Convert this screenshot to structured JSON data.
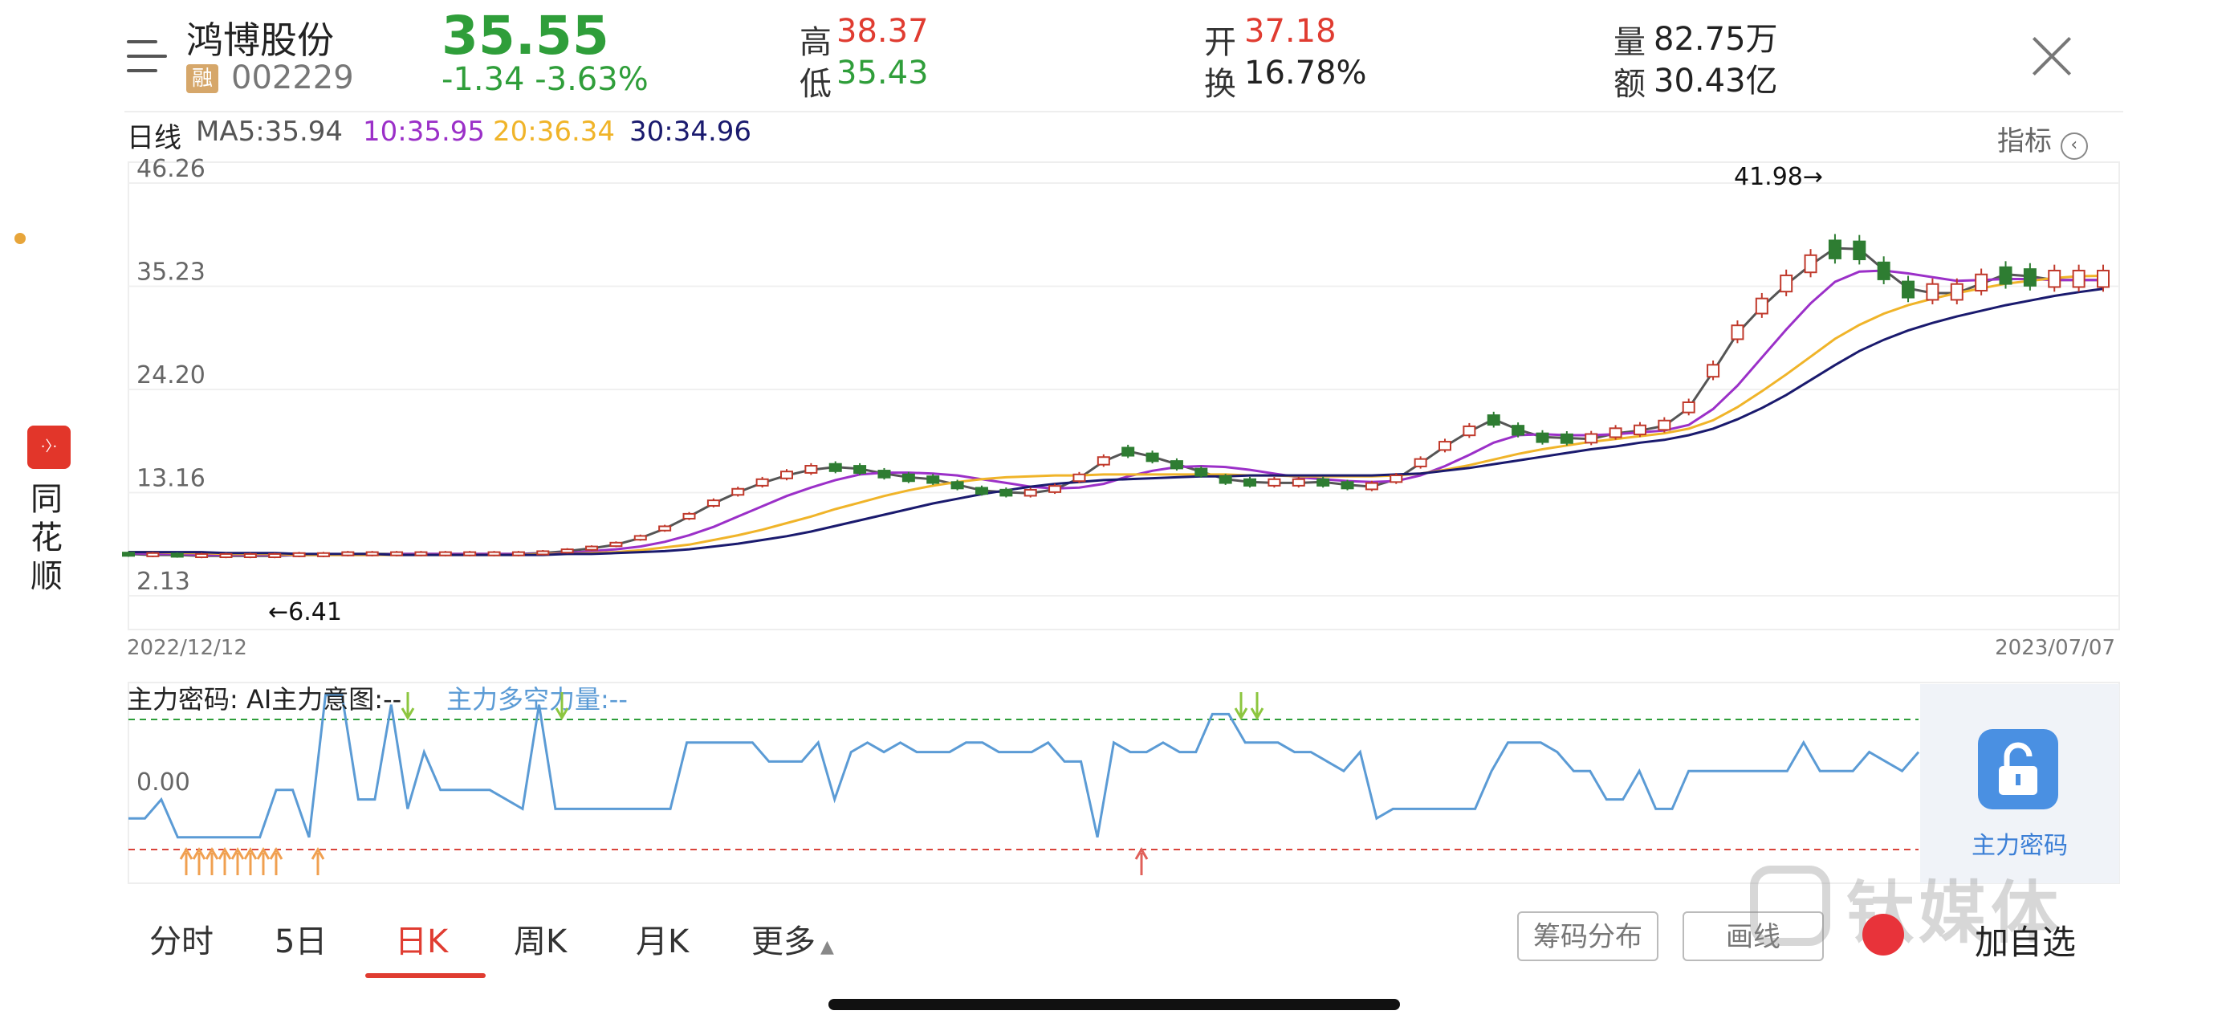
{
  "header": {
    "stock_name": "鸿博股份",
    "rong_badge": "融",
    "stock_code": "002229",
    "price": "35.55",
    "change": "-1.34  -3.63%",
    "high_label": "高",
    "high_value": "38.37",
    "low_label": "低",
    "low_value": "35.43",
    "open_label": "开",
    "open_value": "37.18",
    "turnover_label": "换",
    "turnover_value": "16.78%",
    "volume_label": "量",
    "volume_value": "82.75万",
    "amount_label": "额",
    "amount_value": "30.43亿"
  },
  "left_brand": {
    "logo_text": "·〉·",
    "name": "同花顺"
  },
  "ma_legend": {
    "period": "日线",
    "ma5": "MA5:35.94",
    "ma10": "10:35.95",
    "ma20": "20:36.34",
    "ma30": "30:34.96",
    "indicator_button": "指标"
  },
  "colors": {
    "up": "#c0392b",
    "down": "#2e7d32",
    "ma5": "#555555",
    "ma10": "#9b30c8",
    "ma20": "#f0b429",
    "ma30": "#1a1a6e",
    "indicator_line": "#5b9bd5",
    "upper_dash": "#2e9e3a",
    "lower_dash": "#d9443b"
  },
  "chart_data": [
    {
      "type": "candlestick",
      "y_ticks": [
        "46.26",
        "35.23",
        "24.20",
        "13.16",
        "2.13"
      ],
      "ylim": [
        2.13,
        46.26
      ],
      "x_start_label": "2022/12/12",
      "x_end_label": "2023/07/07",
      "annotations": [
        {
          "text": "41.98→",
          "value": 41.98
        },
        {
          "text": "←6.41",
          "value": 6.41
        }
      ],
      "series": [
        {
          "name": "MA5",
          "values": [
            6.6,
            6.5,
            6.5,
            6.4,
            6.4,
            6.4,
            6.4,
            6.5,
            6.5,
            6.6,
            6.6,
            6.6,
            6.6,
            6.6,
            6.6,
            6.6,
            6.6,
            6.7,
            6.9,
            7.2,
            7.6,
            8.3,
            9.3,
            10.6,
            12.0,
            13.2,
            14.2,
            15.0,
            15.6,
            15.9,
            15.7,
            15.2,
            14.8,
            14.6,
            14.0,
            13.4,
            13.2,
            13.1,
            13.5,
            14.7,
            16.5,
            17.6,
            17.0,
            16.2,
            15.4,
            14.6,
            14.3,
            14.2,
            14.2,
            14.3,
            14.0,
            13.8,
            14.6,
            16.3,
            18.1,
            19.7,
            21.0,
            19.9,
            19.1,
            19.0,
            18.9,
            19.5,
            19.8,
            20.3,
            22.2,
            26.1,
            30.2,
            33.0,
            35.4,
            37.5,
            39.3,
            39.2,
            37.0,
            35.0,
            34.5,
            34.5,
            35.5,
            36.5,
            36.3,
            35.9,
            35.9,
            35.9
          ]
        },
        {
          "name": "MA10",
          "values": [
            6.7,
            6.6,
            6.6,
            6.5,
            6.5,
            6.5,
            6.5,
            6.5,
            6.5,
            6.5,
            6.5,
            6.6,
            6.6,
            6.6,
            6.6,
            6.6,
            6.6,
            6.6,
            6.7,
            6.9,
            7.1,
            7.4,
            7.9,
            8.6,
            9.5,
            10.6,
            11.7,
            12.8,
            13.7,
            14.5,
            15.1,
            15.3,
            15.3,
            15.2,
            15.0,
            14.6,
            14.2,
            13.8,
            13.6,
            13.7,
            14.1,
            14.9,
            15.5,
            15.9,
            16.0,
            15.9,
            15.6,
            15.2,
            14.8,
            14.6,
            14.4,
            14.3,
            14.4,
            15.0,
            16.0,
            17.2,
            18.5,
            19.3,
            19.4,
            19.3,
            19.3,
            19.4,
            19.6,
            19.8,
            20.4,
            22.1,
            24.6,
            27.6,
            30.6,
            33.4,
            35.7,
            36.8,
            36.9,
            36.6,
            36.2,
            35.8,
            35.9,
            36.0,
            36.0,
            35.9,
            35.9,
            35.9
          ]
        },
        {
          "name": "MA20",
          "values": [
            6.8,
            6.8,
            6.7,
            6.7,
            6.6,
            6.6,
            6.6,
            6.5,
            6.5,
            6.5,
            6.5,
            6.5,
            6.5,
            6.5,
            6.5,
            6.5,
            6.5,
            6.6,
            6.6,
            6.7,
            6.8,
            7.0,
            7.3,
            7.6,
            8.1,
            8.6,
            9.2,
            9.9,
            10.6,
            11.4,
            12.1,
            12.8,
            13.4,
            13.9,
            14.3,
            14.6,
            14.8,
            14.9,
            15.0,
            15.0,
            15.1,
            15.1,
            15.1,
            15.1,
            15.1,
            15.1,
            15.0,
            15.0,
            14.9,
            14.9,
            14.9,
            14.9,
            15.0,
            15.2,
            15.6,
            16.1,
            16.7,
            17.3,
            17.8,
            18.2,
            18.6,
            18.9,
            19.2,
            19.5,
            20.0,
            20.9,
            22.3,
            24.0,
            25.8,
            27.7,
            29.6,
            31.1,
            32.3,
            33.2,
            33.9,
            34.5,
            35.0,
            35.5,
            35.8,
            36.1,
            36.3,
            36.34
          ]
        },
        {
          "name": "MA30",
          "values": [
            6.8,
            6.8,
            6.8,
            6.8,
            6.7,
            6.7,
            6.7,
            6.6,
            6.6,
            6.6,
            6.6,
            6.5,
            6.5,
            6.5,
            6.5,
            6.5,
            6.5,
            6.5,
            6.6,
            6.6,
            6.7,
            6.8,
            6.9,
            7.1,
            7.4,
            7.7,
            8.1,
            8.5,
            9.0,
            9.6,
            10.2,
            10.8,
            11.4,
            12.0,
            12.5,
            13.0,
            13.4,
            13.8,
            14.1,
            14.3,
            14.5,
            14.6,
            14.7,
            14.8,
            14.9,
            14.9,
            15.0,
            15.0,
            15.0,
            15.0,
            15.0,
            15.0,
            15.1,
            15.2,
            15.5,
            15.8,
            16.2,
            16.6,
            17.0,
            17.4,
            17.8,
            18.1,
            18.5,
            18.8,
            19.3,
            20.0,
            21.0,
            22.2,
            23.6,
            25.2,
            26.8,
            28.3,
            29.5,
            30.5,
            31.3,
            32.0,
            32.6,
            33.2,
            33.7,
            34.2,
            34.6,
            34.96
          ]
        }
      ]
    },
    {
      "type": "line",
      "title": "主力密码: AI主力意图:--",
      "subtitle": "主力多空力量:--",
      "y_ticks": [
        "0.00"
      ],
      "values": [
        -0.4,
        -0.4,
        -0.2,
        -0.6,
        -0.6,
        -0.6,
        -0.6,
        -0.6,
        -0.6,
        -0.1,
        -0.1,
        -0.6,
        0.9,
        0.9,
        -0.2,
        -0.2,
        0.8,
        -0.3,
        0.3,
        -0.1,
        -0.1,
        -0.1,
        -0.1,
        -0.2,
        -0.3,
        0.8,
        -0.3,
        -0.3,
        -0.3,
        -0.3,
        -0.3,
        -0.3,
        -0.3,
        -0.3,
        0.4,
        0.4,
        0.4,
        0.4,
        0.4,
        0.2,
        0.2,
        0.2,
        0.4,
        -0.2,
        0.3,
        0.4,
        0.3,
        0.4,
        0.3,
        0.3,
        0.3,
        0.4,
        0.4,
        0.3,
        0.3,
        0.3,
        0.4,
        0.2,
        0.2,
        -0.6,
        0.4,
        0.3,
        0.3,
        0.4,
        0.3,
        0.3,
        0.7,
        0.7,
        0.4,
        0.4,
        0.4,
        0.3,
        0.3,
        0.2,
        0.1,
        0.3,
        -0.4,
        -0.3,
        -0.3,
        -0.3,
        -0.3,
        -0.3,
        -0.3,
        0.1,
        0.4,
        0.4,
        0.4,
        0.3,
        0.1,
        0.1,
        -0.2,
        -0.2,
        0.1,
        -0.3,
        -0.3,
        0.1,
        0.1,
        0.1,
        0.1,
        0.1,
        0.1,
        0.1,
        0.4,
        0.1,
        0.1,
        0.1,
        0.3,
        0.2,
        0.1,
        0.3
      ]
    }
  ],
  "lock_card": {
    "label": "主力密码"
  },
  "bottom_tabs": {
    "fenshi": "分时",
    "five_day": "5日",
    "day_k": "日K",
    "week_k": "周K",
    "month_k": "月K",
    "more": "更多",
    "chip": "筹码分布",
    "draw": "画线",
    "add": "加自选"
  },
  "watermark": "钛媒体"
}
